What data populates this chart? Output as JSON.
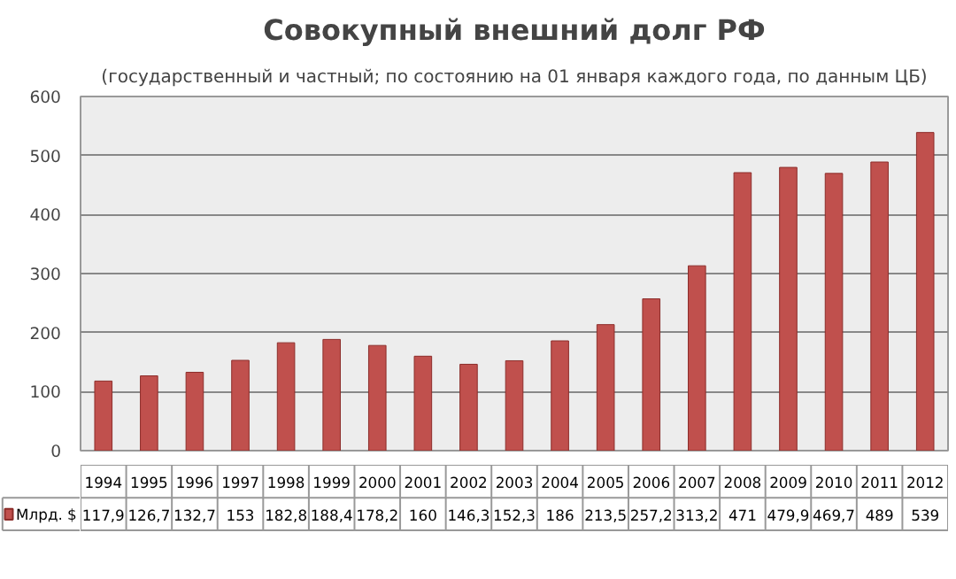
{
  "chart_data": {
    "type": "bar",
    "title": "Совокупный внешний долг РФ",
    "subtitle": "(государственный и частный; по состоянию на 01 января каждого года, по данным ЦБ)",
    "categories": [
      "1994",
      "1995",
      "1996",
      "1997",
      "1998",
      "1999",
      "2000",
      "2001",
      "2002",
      "2003",
      "2004",
      "2005",
      "2006",
      "2007",
      "2008",
      "2009",
      "2010",
      "2011",
      "2012"
    ],
    "series": [
      {
        "name": "Млрд. $",
        "color": "#c0504d",
        "values": [
          117.9,
          126.7,
          132.7,
          153,
          182.8,
          188.4,
          178.2,
          160,
          146.3,
          152.3,
          186,
          213.5,
          257.2,
          313.2,
          471,
          479.9,
          469.7,
          489,
          539
        ],
        "value_labels": [
          "117,9",
          "126,7",
          "132,7",
          "153",
          "182,8",
          "188,4",
          "178,2",
          "160",
          "146,3",
          "152,3",
          "186",
          "213,5",
          "257,2",
          "313,2",
          "471",
          "479,9",
          "469,7",
          "489",
          "539"
        ]
      }
    ],
    "ylim": [
      0,
      600
    ],
    "yticks": [
      0,
      100,
      200,
      300,
      400,
      500,
      600
    ],
    "grid": "y",
    "legend": "bottom"
  }
}
